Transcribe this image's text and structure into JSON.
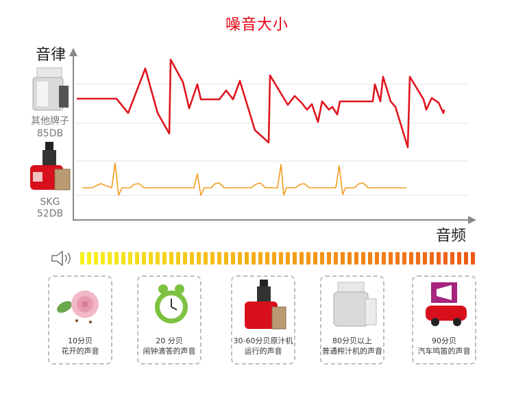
{
  "title": "噪音大小",
  "chart_data": {
    "type": "line",
    "ylabel": "音律",
    "xlabel": "音频",
    "series": [
      {
        "name": "其他牌子 85DB",
        "color": "#e0141e"
      },
      {
        "name": "SKG 52DB",
        "color": "#f39a1f"
      }
    ],
    "labels": {
      "other_brand": "其他牌子",
      "other_db": "85DB",
      "skg": "SKG",
      "skg_db": "52DB"
    }
  },
  "scale_colors": [
    "#f7f21c",
    "#f4a417",
    "#ee5a18"
  ],
  "cards": [
    {
      "line1": "10分贝",
      "line2": "花开的声音",
      "icon": "rose-icon"
    },
    {
      "line1": "20 分贝",
      "line2": "闹钟滴答的声音",
      "icon": "alarm-clock-icon"
    },
    {
      "line1": "30-60分贝原汁机",
      "line2": "运行的声音",
      "icon": "slow-juicer-icon"
    },
    {
      "line1": "80分贝以上",
      "line2": "普通榨汁机的声音",
      "icon": "juicer-icon"
    },
    {
      "line1": "90分贝",
      "line2": "汽车鸣笛的声音",
      "icon": "car-horn-icon"
    }
  ]
}
